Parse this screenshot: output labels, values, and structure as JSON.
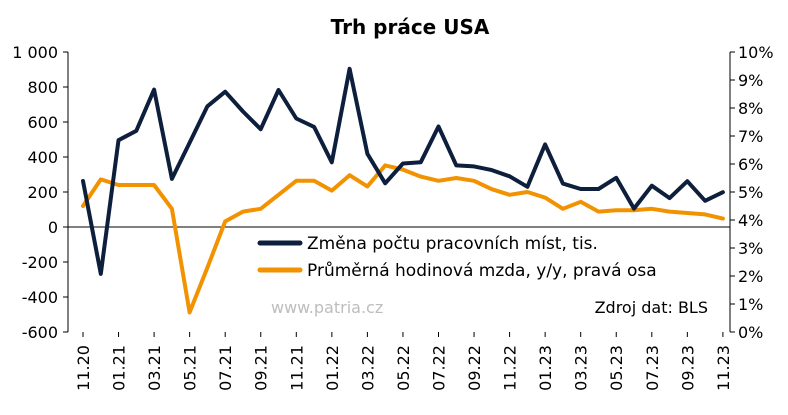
{
  "chart_data": {
    "type": "line",
    "title": "Trh práce USA",
    "source": "Zdroj dat: BLS",
    "watermark": "www.patria.cz",
    "x": [
      "11.20",
      "12.20",
      "01.21",
      "02.21",
      "03.21",
      "04.21",
      "05.21",
      "06.21",
      "07.21",
      "08.21",
      "09.21",
      "10.21",
      "11.21",
      "12.21",
      "01.22",
      "02.22",
      "03.22",
      "04.22",
      "05.22",
      "06.22",
      "07.22",
      "08.22",
      "09.22",
      "10.22",
      "11.22",
      "12.22",
      "01.23",
      "02.23",
      "03.23",
      "04.23",
      "05.23",
      "06.23",
      "07.23",
      "08.23",
      "09.23",
      "10.23",
      "11.23"
    ],
    "x_tick_labels": [
      "11.20",
      "01.21",
      "03.21",
      "05.21",
      "07.21",
      "09.21",
      "11.21",
      "01.22",
      "03.22",
      "05.22",
      "07.22",
      "09.22",
      "11.22",
      "01.23",
      "03.23",
      "05.23",
      "07.23",
      "09.23",
      "11.23"
    ],
    "y_left": {
      "min": -600,
      "max": 1000,
      "step": 200,
      "tick_labels": [
        "-600",
        "-400",
        "-200",
        "0",
        "200",
        "400",
        "600",
        "800",
        "1 000"
      ]
    },
    "y_right": {
      "min": 0,
      "max": 10,
      "step": 1,
      "tick_labels": [
        "0%",
        "1%",
        "2%",
        "3%",
        "4%",
        "5%",
        "6%",
        "7%",
        "8%",
        "9%",
        "10%"
      ]
    },
    "series": [
      {
        "name": "Změna počtu pracovních míst, tis.",
        "axis": "left",
        "color": "#0d1f3c",
        "values": [
          263,
          -268,
          496,
          550,
          785,
          275,
          482,
          690,
          773,
          660,
          559,
          783,
          620,
          572,
          370,
          904,
          418,
          250,
          363,
          370,
          574,
          352,
          346,
          325,
          290,
          230,
          472,
          248,
          217,
          217,
          281,
          105,
          236,
          165,
          262,
          150,
          199
        ]
      },
      {
        "name": "Průměrná hodinová mzda, y/y, pravá osa",
        "axis": "right",
        "color": "#f39200",
        "values": [
          4.5,
          5.45,
          5.25,
          5.25,
          5.25,
          4.4,
          0.7,
          2.3,
          3.95,
          4.3,
          4.4,
          4.9,
          5.4,
          5.4,
          5.05,
          5.6,
          5.2,
          5.95,
          5.8,
          5.55,
          5.4,
          5.5,
          5.4,
          5.1,
          4.9,
          5.0,
          4.8,
          4.4,
          4.65,
          4.3,
          4.35,
          4.35,
          4.4,
          4.3,
          4.25,
          4.2,
          4.05
        ]
      }
    ],
    "legend_position": "bottom-right",
    "grid": false
  }
}
